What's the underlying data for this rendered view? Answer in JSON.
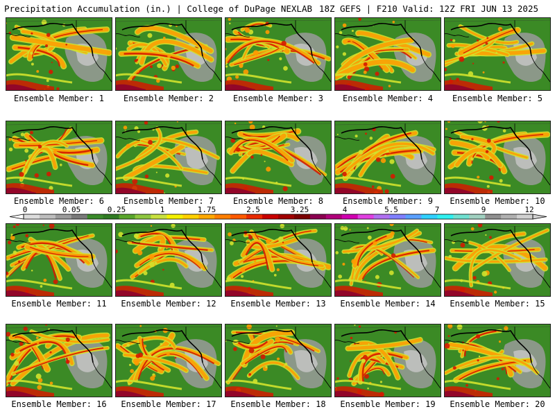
{
  "header": {
    "left_title": "Precipitation Accumulation (in.) | College of DuPage NEXLAB",
    "right_title": "18Z GEFS | F210 Valid: 12Z FRI JUN 13 2025"
  },
  "colorbar": {
    "tick_labels": [
      "0",
      "0.05",
      "0.25",
      "1",
      "1.75",
      "2.5",
      "3.25",
      "4",
      "5.5",
      "7",
      "9",
      "12"
    ],
    "colors": [
      "#dcdcdc",
      "#bdbdbd",
      "#9b9b9b",
      "#7a7a7a",
      "#3a8a2a",
      "#2f7a22",
      "#59a52c",
      "#8ec63f",
      "#c8e03f",
      "#f4f000",
      "#ffd000",
      "#ffa800",
      "#ff7f00",
      "#ff5a00",
      "#e82a00",
      "#c80000",
      "#a00000",
      "#7a0000",
      "#8a0050",
      "#b0007a",
      "#d000b0",
      "#e040e0",
      "#b070f0",
      "#8080ff",
      "#5aa0ff",
      "#30d0ff",
      "#30f0f0",
      "#70e0d0",
      "#a0d0c0",
      "#909090",
      "#b0b0b0",
      "#d0d0d0"
    ]
  },
  "panels": [
    {
      "label": "Ensemble Member: 1"
    },
    {
      "label": "Ensemble Member: 2"
    },
    {
      "label": "Ensemble Member: 3"
    },
    {
      "label": "Ensemble Member: 4"
    },
    {
      "label": "Ensemble Member: 5"
    },
    {
      "label": "Ensemble Member: 6"
    },
    {
      "label": "Ensemble Member: 7"
    },
    {
      "label": "Ensemble Member: 8"
    },
    {
      "label": "Ensemble Member: 9"
    },
    {
      "label": "Ensemble Member: 10"
    },
    {
      "label": "Ensemble Member: 11"
    },
    {
      "label": "Ensemble Member: 12"
    },
    {
      "label": "Ensemble Member: 13"
    },
    {
      "label": "Ensemble Member: 14"
    },
    {
      "label": "Ensemble Member: 15"
    },
    {
      "label": "Ensemble Member: 16"
    },
    {
      "label": "Ensemble Member: 17"
    },
    {
      "label": "Ensemble Member: 18"
    },
    {
      "label": "Ensemble Member: 19"
    },
    {
      "label": "Ensemble Member: 20"
    }
  ],
  "map_colors": {
    "base": "#3b8a25",
    "dry": "#9a9a9a",
    "light": "#d2e22e",
    "moderate": "#ff9a00",
    "heavy": "#d41a00",
    "extreme": "#8b0030",
    "coast": "#000000"
  }
}
